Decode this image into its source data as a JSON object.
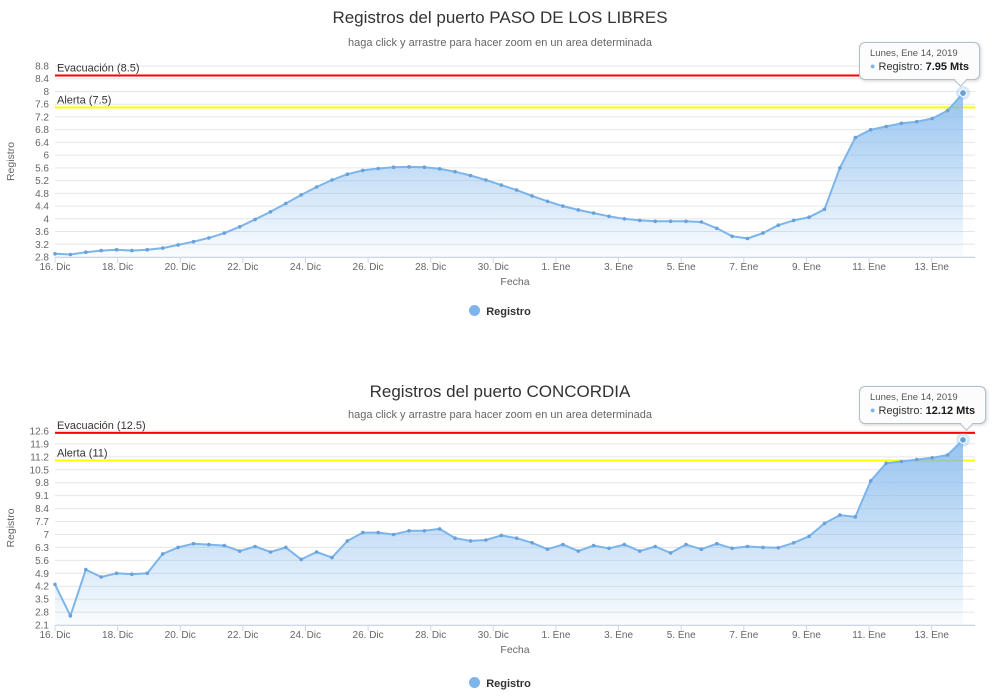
{
  "page": {
    "background": "#ffffff"
  },
  "chart_data": [
    {
      "type": "area",
      "title": "Registros del puerto PASO DE LOS LIBRES",
      "subtitle": "haga click y arrastre para hacer zoom en un area determinada",
      "xlabel": "Fecha",
      "ylabel": "Registro",
      "x_tick_labels": [
        "16. Dic",
        "18. Dic",
        "20. Dic",
        "22. Dic",
        "24. Dic",
        "26. Dic",
        "28. Dic",
        "30. Dic",
        "1. Ene",
        "3. Ene",
        "5. Ene",
        "7. Ene",
        "9. Ene",
        "11. Ene",
        "13. Ene"
      ],
      "x_span_days": 29,
      "ylim": [
        2.8,
        8.8
      ],
      "y_step": 0.4,
      "grid": true,
      "legend_position": "bottom-center",
      "plot_lines": [
        {
          "label": "Evacuación (8.5)",
          "value": 8.5,
          "color": "#ff0000"
        },
        {
          "label": "Alerta (7.5)",
          "value": 7.5,
          "color": "#ffff00"
        }
      ],
      "series": [
        {
          "name": "Registro",
          "color": "#7cb5ec",
          "values": [
            2.9,
            2.88,
            2.95,
            3.0,
            3.03,
            3.0,
            3.03,
            3.08,
            3.18,
            3.28,
            3.4,
            3.55,
            3.75,
            3.98,
            4.22,
            4.48,
            4.75,
            5.0,
            5.22,
            5.4,
            5.52,
            5.58,
            5.62,
            5.63,
            5.62,
            5.57,
            5.48,
            5.36,
            5.22,
            5.06,
            4.9,
            4.72,
            4.55,
            4.4,
            4.28,
            4.18,
            4.08,
            4.0,
            3.95,
            3.92,
            3.92,
            3.92,
            3.9,
            3.7,
            3.45,
            3.38,
            3.55,
            3.8,
            3.95,
            4.05,
            4.3,
            5.6,
            6.55,
            6.8,
            6.9,
            7.0,
            7.05,
            7.15,
            7.4,
            7.95
          ]
        }
      ],
      "tooltip": {
        "date": "Lunes, Ene 14, 2019",
        "series_label": "Registro:",
        "value": "7.95 Mts"
      },
      "legend": {
        "label": "Registro"
      }
    },
    {
      "type": "area",
      "title": "Registros del puerto CONCORDIA",
      "subtitle": "haga click y arrastre para hacer zoom en un area determinada",
      "xlabel": "Fecha",
      "ylabel": "Registro",
      "x_tick_labels": [
        "16. Dic",
        "18. Dic",
        "20. Dic",
        "22. Dic",
        "24. Dic",
        "26. Dic",
        "28. Dic",
        "30. Dic",
        "1. Ene",
        "3. Ene",
        "5. Ene",
        "7. Ene",
        "9. Ene",
        "11. Ene",
        "13. Ene"
      ],
      "x_span_days": 29,
      "ylim": [
        2.1,
        12.6
      ],
      "y_step": 0.7,
      "grid": true,
      "legend_position": "bottom-center",
      "plot_lines": [
        {
          "label": "Evacuación (12.5)",
          "value": 12.5,
          "color": "#ff0000"
        },
        {
          "label": "Alerta (11)",
          "value": 11.0,
          "color": "#ffff00"
        }
      ],
      "series": [
        {
          "name": "Registro",
          "color": "#7cb5ec",
          "values": [
            4.3,
            2.6,
            5.1,
            4.7,
            4.9,
            4.85,
            4.9,
            5.95,
            6.3,
            6.5,
            6.45,
            6.4,
            6.1,
            6.35,
            6.05,
            6.3,
            5.65,
            6.05,
            5.75,
            6.65,
            7.1,
            7.1,
            7.0,
            7.2,
            7.2,
            7.3,
            6.8,
            6.65,
            6.7,
            6.95,
            6.8,
            6.55,
            6.2,
            6.45,
            6.1,
            6.4,
            6.25,
            6.45,
            6.1,
            6.35,
            6.0,
            6.45,
            6.2,
            6.5,
            6.25,
            6.35,
            6.3,
            6.28,
            6.55,
            6.9,
            7.6,
            8.05,
            7.95,
            9.9,
            10.85,
            10.95,
            11.05,
            11.15,
            11.3,
            12.12
          ]
        }
      ],
      "tooltip": {
        "date": "Lunes, Ene 14, 2019",
        "series_label": "Registro:",
        "value": "12.12 Mts"
      },
      "legend": {
        "label": "Registro"
      }
    }
  ],
  "colors": {
    "series": "#7cb5ec",
    "evacuacion_line": "#ff0000",
    "alerta_line": "#ffff00",
    "grid": "#e6e6e6",
    "axis": "#ccd6eb",
    "title_text": "#333333",
    "subtitle_text": "#666666",
    "tick_text": "#666666"
  }
}
